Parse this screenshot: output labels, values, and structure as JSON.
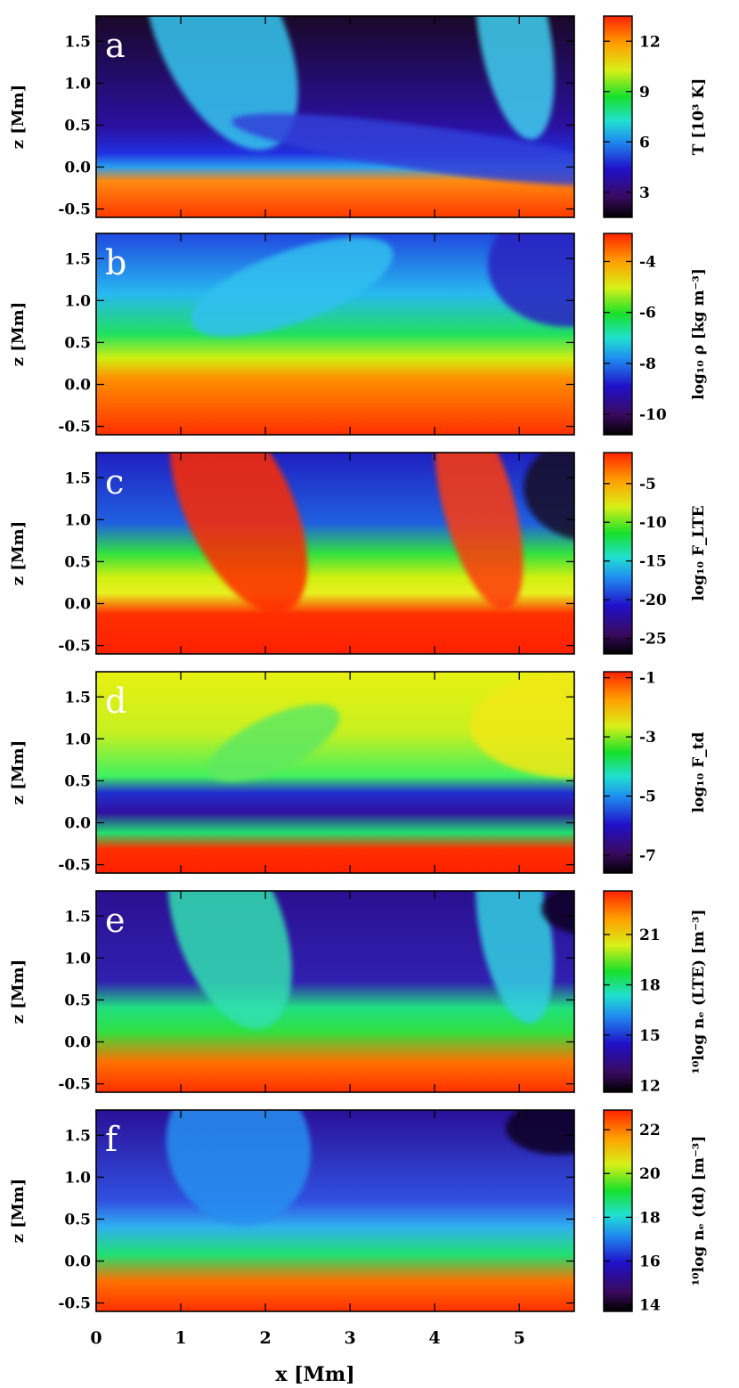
{
  "chart_data": {
    "type": "heatmap",
    "colormap": "rainbow (black-purple-blue-cyan-green-yellow-red)",
    "x_axis": {
      "label": "x [Mm]",
      "range": [
        0,
        5.65
      ],
      "ticks": [
        0,
        1,
        2,
        3,
        4,
        5
      ],
      "tick_labels": [
        "0",
        "1",
        "2",
        "3",
        "4",
        "5"
      ]
    },
    "panels": [
      {
        "letter": "a",
        "ylabel": "z [Mm]",
        "yrange": [
          -0.6,
          1.8
        ],
        "yticks": [
          -0.5,
          0.0,
          0.5,
          1.0,
          1.5
        ],
        "ytick_labels": [
          "-0.5",
          "0.0",
          "0.5",
          "1.0",
          "1.5"
        ],
        "colorbar": {
          "label": "T [10³ K]",
          "range": [
            1.5,
            13.5
          ],
          "ticks": [
            3,
            6,
            9,
            12
          ],
          "tick_labels": [
            "3",
            "6",
            "9",
            "12"
          ]
        }
      },
      {
        "letter": "b",
        "ylabel": "z [Mm]",
        "yrange": [
          -0.6,
          1.8
        ],
        "yticks": [
          -0.5,
          0.0,
          0.5,
          1.0,
          1.5
        ],
        "ytick_labels": [
          "-0.5",
          "0.0",
          "0.5",
          "1.0",
          "1.5"
        ],
        "colorbar": {
          "label": "log₁₀ ρ [kg m⁻³]",
          "range": [
            -10.8,
            -2.9
          ],
          "ticks": [
            -10,
            -8,
            -6,
            -4
          ],
          "tick_labels": [
            "-10",
            "-8",
            "-6",
            "-4"
          ]
        }
      },
      {
        "letter": "c",
        "ylabel": "z [Mm]",
        "yrange": [
          -0.6,
          1.8
        ],
        "yticks": [
          -0.5,
          0.0,
          0.5,
          1.0,
          1.5
        ],
        "ytick_labels": [
          "-0.5",
          "0.0",
          "0.5",
          "1.0",
          "1.5"
        ],
        "colorbar": {
          "label": "log₁₀ F_LTE",
          "range": [
            -27,
            -1
          ],
          "ticks": [
            -25,
            -20,
            -15,
            -10,
            -5
          ],
          "tick_labels": [
            "-25",
            "-20",
            "-15",
            "-10",
            "-5"
          ]
        }
      },
      {
        "letter": "d",
        "ylabel": "z [Mm]",
        "yrange": [
          -0.6,
          1.8
        ],
        "yticks": [
          -0.5,
          0.0,
          0.5,
          1.0,
          1.5
        ],
        "ytick_labels": [
          "-0.5",
          "0.0",
          "0.5",
          "1.0",
          "1.5"
        ],
        "colorbar": {
          "label": "log₁₀ F_td",
          "range": [
            -7.6,
            -0.8
          ],
          "ticks": [
            -7,
            -5,
            -3,
            -1
          ],
          "tick_labels": [
            "-7",
            "-5",
            "-3",
            "-1"
          ]
        }
      },
      {
        "letter": "e",
        "ylabel": "z [Mm]",
        "yrange": [
          -0.6,
          1.8
        ],
        "yticks": [
          -0.5,
          0.0,
          0.5,
          1.0,
          1.5
        ],
        "ytick_labels": [
          "-0.5",
          "0.0",
          "0.5",
          "1.0",
          "1.5"
        ],
        "colorbar": {
          "label": "¹⁰log nₑ (LTE) [m⁻³]",
          "range": [
            11.6,
            23.6
          ],
          "ticks": [
            12,
            15,
            18,
            21
          ],
          "tick_labels": [
            "12",
            "15",
            "18",
            "21"
          ]
        }
      },
      {
        "letter": "f",
        "ylabel": "z [Mm]",
        "yrange": [
          -0.6,
          1.8
        ],
        "yticks": [
          -0.5,
          0.0,
          0.5,
          1.0,
          1.5
        ],
        "ytick_labels": [
          "-0.5",
          "0.0",
          "0.5",
          "1.0",
          "1.5"
        ],
        "colorbar": {
          "label": "¹⁰log nₑ (td) [m⁻³]",
          "range": [
            13.7,
            22.9
          ],
          "ticks": [
            14,
            16,
            18,
            20,
            22
          ],
          "tick_labels": [
            "14",
            "16",
            "18",
            "20",
            "22"
          ]
        }
      }
    ]
  }
}
